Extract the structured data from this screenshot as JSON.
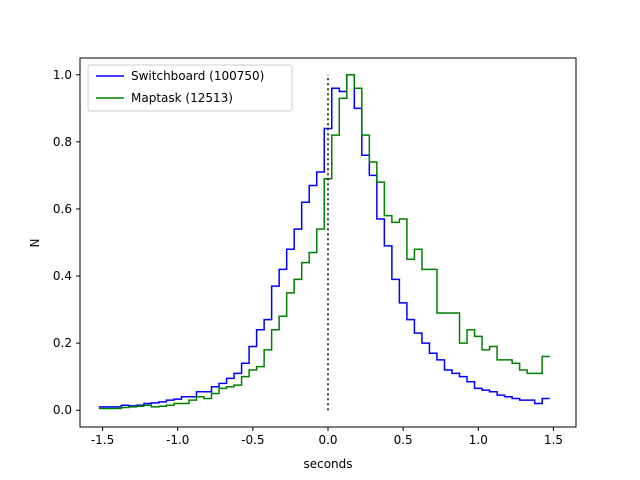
{
  "chart_data": {
    "type": "line",
    "style": "step",
    "title": "",
    "xlabel": "seconds",
    "ylabel": "N",
    "xlim": [
      -1.65,
      1.65
    ],
    "ylim": [
      -0.05,
      1.05
    ],
    "xticks": [
      -1.5,
      -1.0,
      -0.5,
      0.0,
      0.5,
      1.0,
      1.5
    ],
    "xtick_labels": [
      "-1.5",
      "-1.0",
      "-0.5",
      "0.0",
      "0.5",
      "1.0",
      "1.5"
    ],
    "yticks": [
      0.0,
      0.2,
      0.4,
      0.6,
      0.8,
      1.0
    ],
    "ytick_labels": [
      "0.0",
      "0.2",
      "0.4",
      "0.6",
      "0.8",
      "1.0"
    ],
    "grid": false,
    "legend": "top-left",
    "reference_line": {
      "x": 0.0,
      "y_range": [
        0.0,
        1.0
      ],
      "style": "dotted",
      "color": "#000000"
    },
    "x": [
      -1.5,
      -1.45,
      -1.4,
      -1.35,
      -1.3,
      -1.25,
      -1.2,
      -1.15,
      -1.1,
      -1.05,
      -1.0,
      -0.95,
      -0.9,
      -0.85,
      -0.8,
      -0.75,
      -0.7,
      -0.65,
      -0.6,
      -0.55,
      -0.5,
      -0.45,
      -0.4,
      -0.35,
      -0.3,
      -0.25,
      -0.2,
      -0.15,
      -0.1,
      -0.05,
      0.0,
      0.05,
      0.1,
      0.15,
      0.2,
      0.25,
      0.3,
      0.35,
      0.4,
      0.45,
      0.5,
      0.55,
      0.6,
      0.65,
      0.7,
      0.75,
      0.8,
      0.85,
      0.9,
      0.95,
      1.0,
      1.05,
      1.1,
      1.15,
      1.2,
      1.25,
      1.3,
      1.35,
      1.4,
      1.45
    ],
    "series": [
      {
        "name": "Switchboard (100750)",
        "color": "#0000ff",
        "values": [
          0.01,
          0.01,
          0.01,
          0.015,
          0.013,
          0.015,
          0.02,
          0.022,
          0.025,
          0.03,
          0.033,
          0.04,
          0.04,
          0.055,
          0.055,
          0.07,
          0.08,
          0.095,
          0.11,
          0.14,
          0.19,
          0.24,
          0.27,
          0.37,
          0.42,
          0.48,
          0.54,
          0.62,
          0.67,
          0.71,
          0.84,
          0.96,
          0.95,
          1.0,
          0.9,
          0.76,
          0.7,
          0.57,
          0.49,
          0.39,
          0.32,
          0.27,
          0.23,
          0.2,
          0.17,
          0.15,
          0.12,
          0.11,
          0.1,
          0.085,
          0.065,
          0.06,
          0.055,
          0.045,
          0.04,
          0.035,
          0.03,
          0.03,
          0.02,
          0.035
        ]
      },
      {
        "name": "Maptask (12513)",
        "color": "#008000",
        "values": [
          0.005,
          0.005,
          0.005,
          0.008,
          0.01,
          0.012,
          0.015,
          0.01,
          0.012,
          0.015,
          0.02,
          0.02,
          0.03,
          0.04,
          0.035,
          0.05,
          0.065,
          0.07,
          0.075,
          0.1,
          0.12,
          0.13,
          0.18,
          0.24,
          0.28,
          0.35,
          0.39,
          0.44,
          0.47,
          0.54,
          0.69,
          0.82,
          0.93,
          1.0,
          0.96,
          0.82,
          0.74,
          0.68,
          0.58,
          0.56,
          0.57,
          0.45,
          0.48,
          0.42,
          0.42,
          0.29,
          0.29,
          0.29,
          0.2,
          0.24,
          0.22,
          0.18,
          0.19,
          0.15,
          0.15,
          0.14,
          0.12,
          0.11,
          0.11,
          0.16
        ]
      }
    ]
  }
}
